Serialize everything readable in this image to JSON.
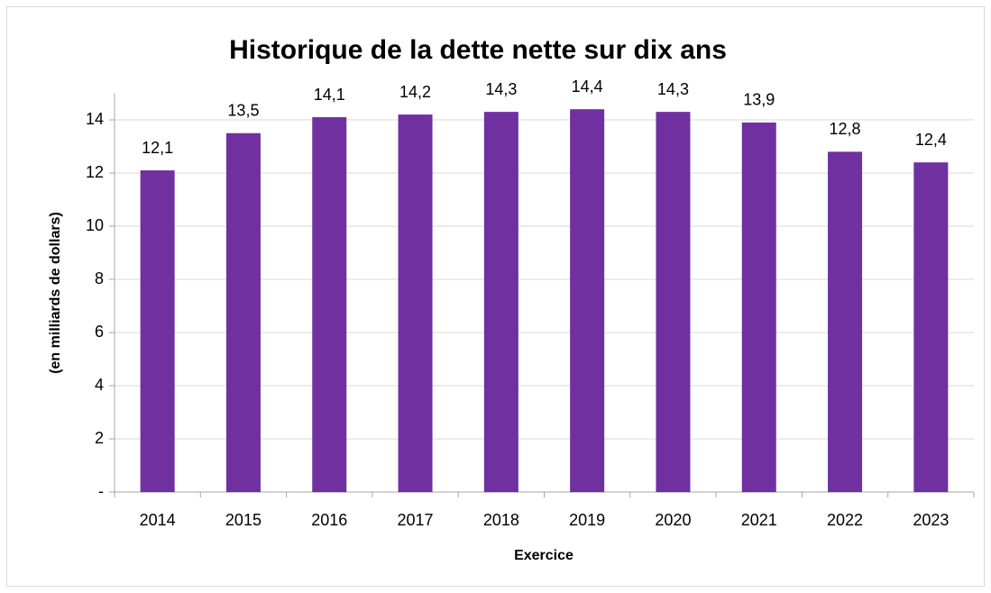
{
  "chart_data": {
    "type": "bar",
    "title": "Historique de la dette nette sur dix ans",
    "x_label": "Exercice",
    "y_label": "(en milliards de dollars)",
    "categories": [
      "2014",
      "2015",
      "2016",
      "2017",
      "2018",
      "2019",
      "2020",
      "2021",
      "2022",
      "2023"
    ],
    "values": [
      12.1,
      13.5,
      14.1,
      14.2,
      14.3,
      14.4,
      14.3,
      13.9,
      12.8,
      12.4
    ],
    "value_labels": [
      "12,1",
      "13,5",
      "14,1",
      "14,2",
      "14,3",
      "14,4",
      "14,3",
      "13,9",
      "12,8",
      "12,4"
    ],
    "color": "#7030a0",
    "ylim": [
      0,
      15
    ],
    "yticks": [
      {
        "value": 0,
        "label": "-"
      },
      2,
      4,
      6,
      8,
      10,
      12,
      14
    ],
    "grid": true
  }
}
